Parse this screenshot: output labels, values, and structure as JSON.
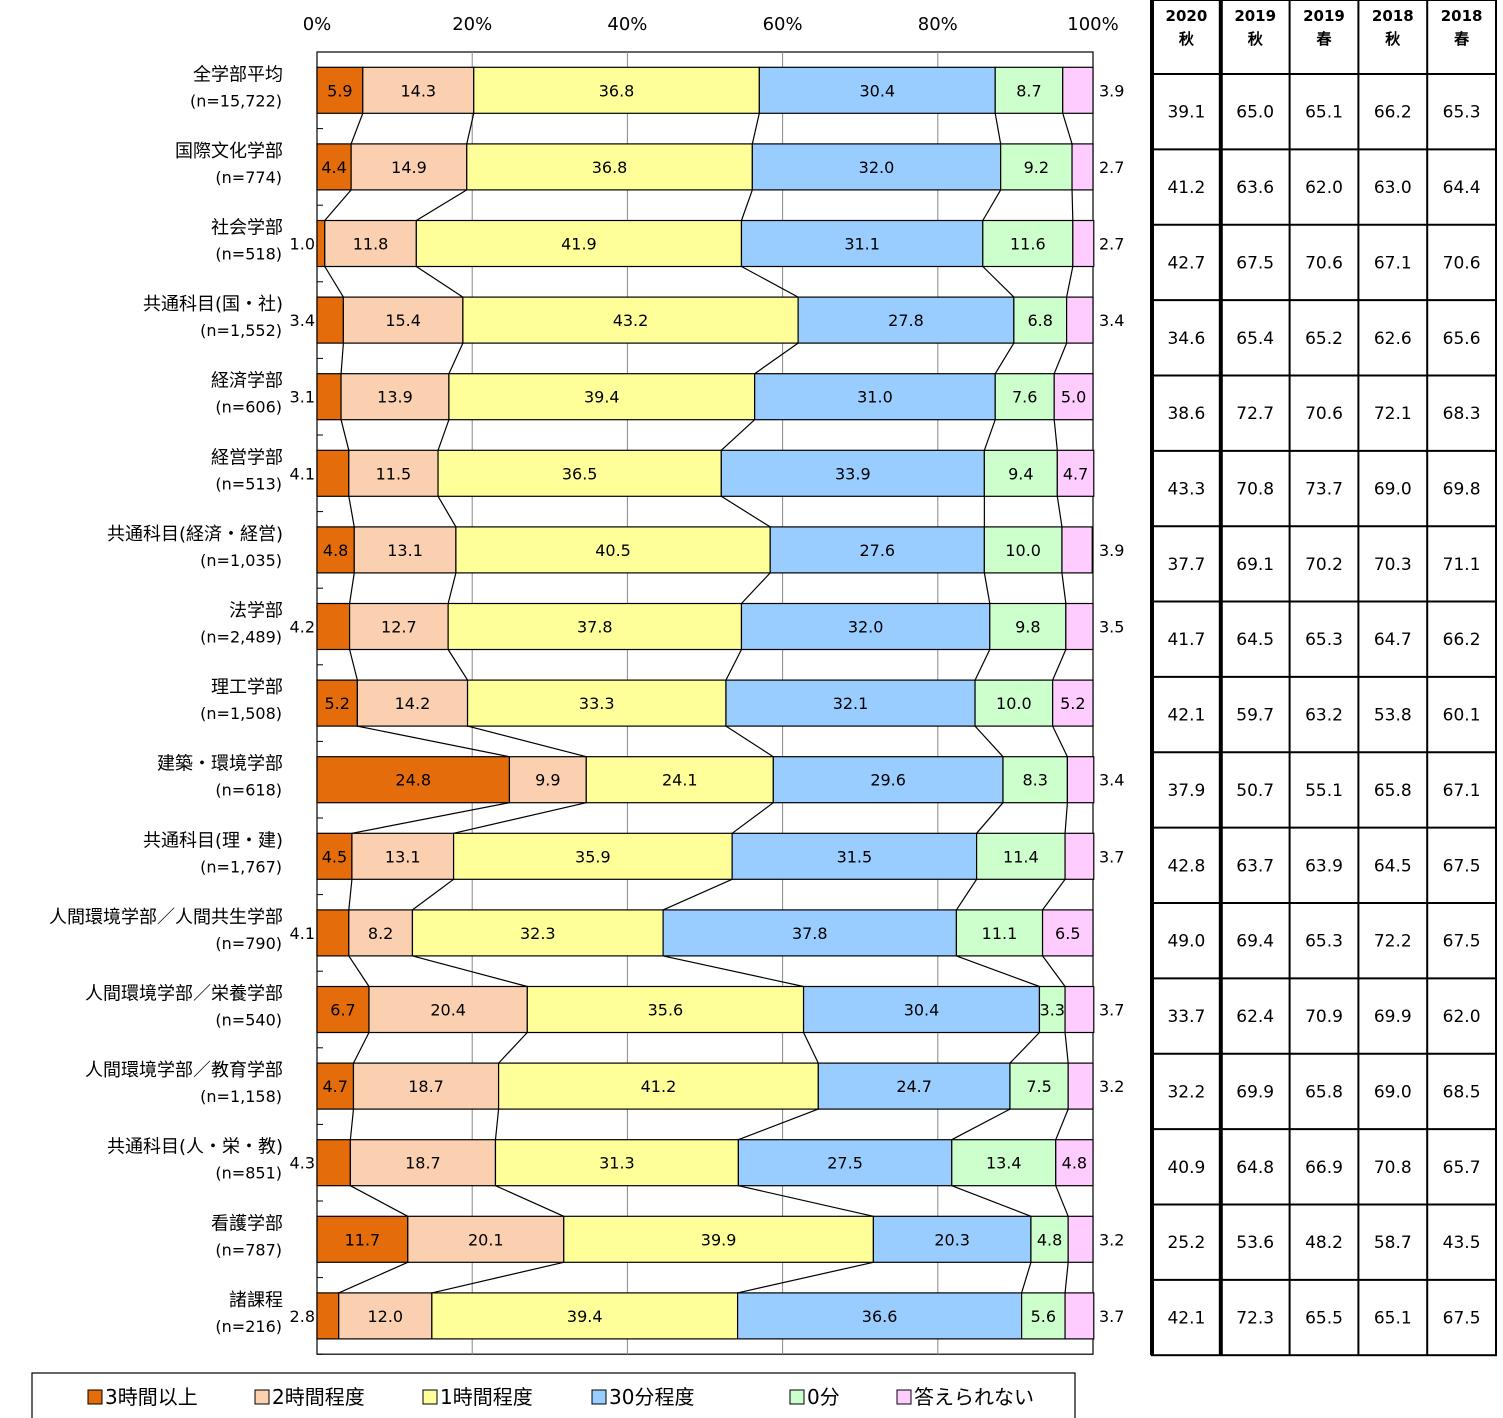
{
  "chart_data": {
    "type": "bar",
    "orientation": "horizontal",
    "stacked": "percent",
    "x_ticks": [
      "0%",
      "20%",
      "40%",
      "60%",
      "80%",
      "100%"
    ],
    "xlim": [
      0,
      100
    ],
    "legend_placement": "bottom",
    "series": [
      {
        "name": "3時間以上",
        "color": "#E46C0A",
        "values": [
          5.9,
          4.4,
          1.0,
          3.4,
          3.1,
          4.1,
          4.8,
          4.2,
          5.2,
          24.8,
          4.5,
          4.1,
          6.7,
          4.7,
          4.3,
          11.7,
          2.8
        ]
      },
      {
        "name": "2時間程度",
        "color": "#FAD0B0",
        "values": [
          14.3,
          14.9,
          11.8,
          15.4,
          13.9,
          11.5,
          13.1,
          12.7,
          14.2,
          9.9,
          13.1,
          8.2,
          20.4,
          18.7,
          18.7,
          20.1,
          12.0
        ]
      },
      {
        "name": "1時間程度",
        "color": "#FFFF99",
        "values": [
          36.8,
          36.8,
          41.9,
          43.2,
          39.4,
          36.5,
          40.5,
          37.8,
          33.3,
          24.1,
          35.9,
          32.3,
          35.6,
          41.2,
          31.3,
          39.9,
          39.4
        ]
      },
      {
        "name": "30分程度",
        "color": "#99CCFF",
        "values": [
          30.4,
          32.0,
          31.1,
          27.8,
          31.0,
          33.9,
          27.6,
          32.0,
          32.1,
          29.6,
          31.5,
          37.8,
          30.4,
          24.7,
          27.5,
          20.3,
          36.6
        ]
      },
      {
        "name": "0分",
        "color": "#CCFFCC",
        "values": [
          8.7,
          9.2,
          11.6,
          6.8,
          7.6,
          9.4,
          10.0,
          9.8,
          10.0,
          8.3,
          11.4,
          11.1,
          3.3,
          7.5,
          13.4,
          4.8,
          5.6
        ]
      },
      {
        "name": "答えられない",
        "color": "#FFCCFF",
        "values": [
          3.9,
          2.7,
          2.7,
          3.4,
          5.0,
          4.7,
          3.9,
          3.5,
          5.2,
          3.4,
          3.7,
          6.5,
          3.7,
          3.2,
          4.8,
          3.2,
          3.7
        ]
      }
    ],
    "categories": [
      {
        "name": "全学部平均",
        "n": "(n=15,722)"
      },
      {
        "name": "国際文化学部",
        "n": "(n=774)"
      },
      {
        "name": "社会学部",
        "n": "(n=518)"
      },
      {
        "name": "共通科目(国・社)",
        "n": "(n=1,552)"
      },
      {
        "name": "経済学部",
        "n": "(n=606)"
      },
      {
        "name": "経営学部",
        "n": "(n=513)"
      },
      {
        "name": "共通科目(経済・経営)",
        "n": "(n=1,035)"
      },
      {
        "name": "法学部",
        "n": "(n=2,489)"
      },
      {
        "name": "理工学部",
        "n": "(n=1,508)"
      },
      {
        "name": "建築・環境学部",
        "n": "(n=618)"
      },
      {
        "name": "共通科目(理・建)",
        "n": "(n=1,767)"
      },
      {
        "name": "人間環境学部／人間共生学部",
        "n": "(n=790)"
      },
      {
        "name": "人間環境学部／栄養学部",
        "n": "(n=540)"
      },
      {
        "name": "人間環境学部／教育学部",
        "n": "(n=1,158)"
      },
      {
        "name": "共通科目(人・栄・教)",
        "n": "(n=851)"
      },
      {
        "name": "看護学部",
        "n": "(n=787)"
      },
      {
        "name": "諸課程",
        "n": "(n=216)"
      }
    ],
    "table": {
      "headers": [
        {
          "year": "2020",
          "term": "秋"
        },
        {
          "year": "2019",
          "term": "秋"
        },
        {
          "year": "2019",
          "term": "春"
        },
        {
          "year": "2018",
          "term": "秋"
        },
        {
          "year": "2018",
          "term": "春"
        }
      ],
      "rows": [
        [
          "39.1",
          "65.0",
          "65.1",
          "66.2",
          "65.3"
        ],
        [
          "41.2",
          "63.6",
          "62.0",
          "63.0",
          "64.4"
        ],
        [
          "42.7",
          "67.5",
          "70.6",
          "67.1",
          "70.6"
        ],
        [
          "34.6",
          "65.4",
          "65.2",
          "62.6",
          "65.6"
        ],
        [
          "38.6",
          "72.7",
          "70.6",
          "72.1",
          "68.3"
        ],
        [
          "43.3",
          "70.8",
          "73.7",
          "69.0",
          "69.8"
        ],
        [
          "37.7",
          "69.1",
          "70.2",
          "70.3",
          "71.1"
        ],
        [
          "41.7",
          "64.5",
          "65.3",
          "64.7",
          "66.2"
        ],
        [
          "42.1",
          "59.7",
          "63.2",
          "53.8",
          "60.1"
        ],
        [
          "37.9",
          "50.7",
          "55.1",
          "65.8",
          "67.1"
        ],
        [
          "42.8",
          "63.7",
          "63.9",
          "64.5",
          "67.5"
        ],
        [
          "49.0",
          "69.4",
          "65.3",
          "72.2",
          "67.5"
        ],
        [
          "33.7",
          "62.4",
          "70.9",
          "69.9",
          "62.0"
        ],
        [
          "32.2",
          "69.9",
          "65.8",
          "69.0",
          "68.5"
        ],
        [
          "40.9",
          "64.8",
          "66.9",
          "70.8",
          "65.7"
        ],
        [
          "25.2",
          "53.6",
          "48.2",
          "58.7",
          "43.5"
        ],
        [
          "42.1",
          "72.3",
          "65.5",
          "65.1",
          "67.5"
        ]
      ]
    }
  }
}
